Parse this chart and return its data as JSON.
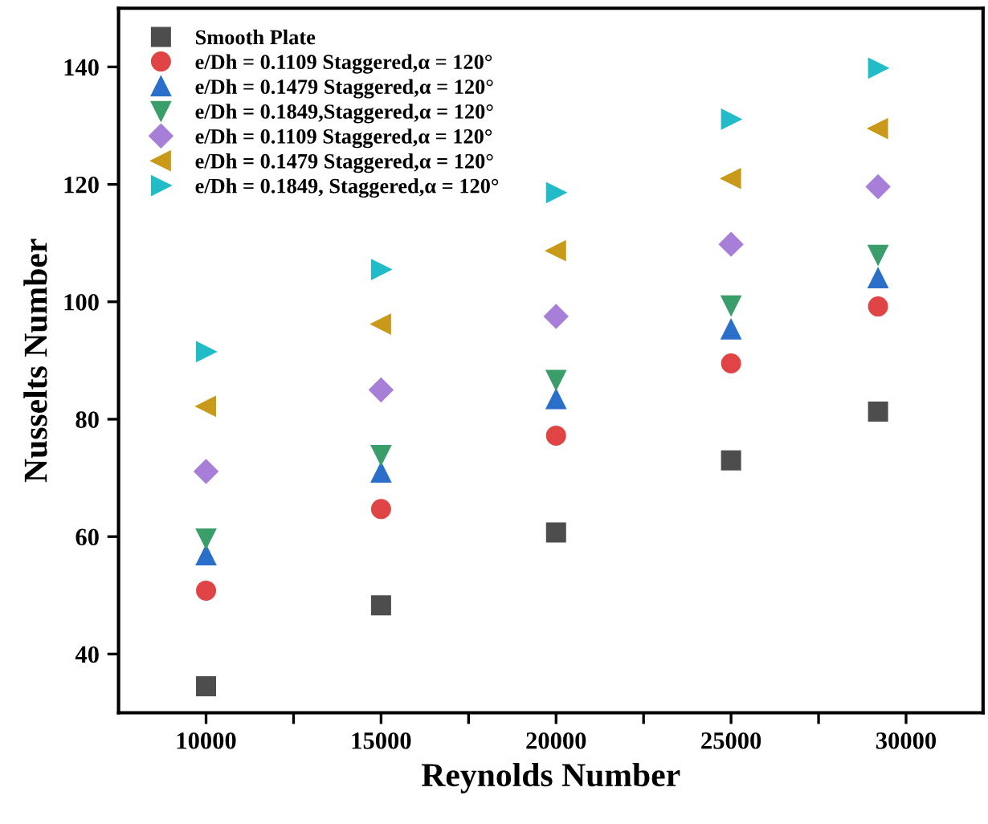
{
  "chart_data": {
    "type": "scatter",
    "xlabel": "Reynolds Number",
    "ylabel": "Nusselts Number",
    "xlim": [
      7500,
      32200
    ],
    "ylim": [
      30,
      150
    ],
    "xticks": [
      10000,
      {
        "value": 12500,
        "label": null
      },
      15000,
      {
        "value": 17500,
        "label": null
      },
      20000,
      {
        "value": 22500,
        "label": null
      },
      25000,
      {
        "value": 27500,
        "label": null
      },
      30000
    ],
    "yticks": [
      40,
      60,
      80,
      100,
      120,
      140
    ],
    "grid": false,
    "legend": "top left",
    "series": [
      {
        "name": "Smooth Plate",
        "color": "#4d4d4d",
        "marker": "square",
        "x": [
          10000,
          15000,
          20000,
          25000,
          29200
        ],
        "values": [
          34.5,
          48.3,
          60.7,
          73,
          81.3
        ]
      },
      {
        "name": "e/Dh = 0.1109 Staggered,α = 120°",
        "color": "#e04444",
        "marker": "circle",
        "x": [
          10000,
          15000,
          20000,
          25000,
          29200
        ],
        "values": [
          50.8,
          64.7,
          77.2,
          89.5,
          99.2
        ]
      },
      {
        "name": "e/Dh = 0.1479 Staggered,α = 120°",
        "color": "#2a6fc9",
        "marker": "triangle",
        "x": [
          10000,
          15000,
          20000,
          25000,
          29200
        ],
        "values": [
          56.8,
          70.9,
          83.4,
          95.3,
          104
        ]
      },
      {
        "name": "e/Dh = 0.1849,Staggered,α = 120°",
        "color": "#3a9e6a",
        "marker": "triangle_down",
        "x": [
          10000,
          15000,
          20000,
          25000,
          29200
        ],
        "values": [
          59.7,
          73.9,
          86.7,
          99.4,
          108
        ]
      },
      {
        "name": "e/Dh = 0.1109 Staggered,α = 120°",
        "color": "#a77ed8",
        "marker": "diamond",
        "x": [
          10000,
          15000,
          20000,
          25000,
          29200
        ],
        "values": [
          71.1,
          85,
          97.5,
          109.8,
          119.6
        ]
      },
      {
        "name": "e/Dh = 0.1479 Staggered,α = 120°",
        "color": "#c99a1a",
        "marker": "triangle_left",
        "x": [
          10000,
          15000,
          20000,
          25000,
          29200
        ],
        "values": [
          82.2,
          96.2,
          108.7,
          121,
          129.5
        ]
      },
      {
        "name": "e/Dh = 0.1849, Staggered,α = 120°",
        "color": "#22bcc8",
        "marker": "triangle_right",
        "x": [
          10000,
          15000,
          20000,
          25000,
          29200
        ],
        "values": [
          91.5,
          105.5,
          118.6,
          131.1,
          139.8
        ]
      }
    ]
  }
}
